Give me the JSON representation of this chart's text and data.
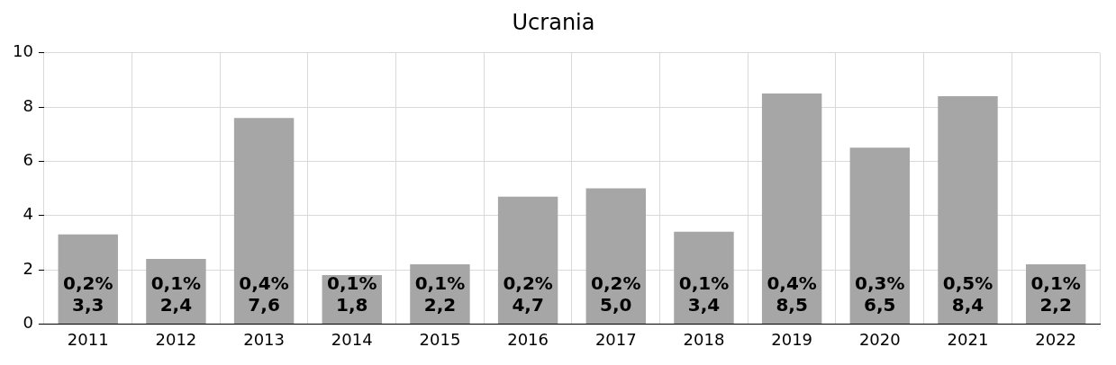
{
  "chart_data": {
    "type": "bar",
    "title": "Ucrania",
    "categories": [
      "2011",
      "2012",
      "2013",
      "2014",
      "2015",
      "2016",
      "2017",
      "2018",
      "2019",
      "2020",
      "2021",
      "2022"
    ],
    "values": [
      3.3,
      2.4,
      7.6,
      1.8,
      2.2,
      4.7,
      5.0,
      3.4,
      8.5,
      6.5,
      8.4,
      2.2
    ],
    "value_labels": [
      "0,2%\n3,3",
      "0,1%\n2,4",
      "0,4%\n7,6",
      "0,1%\n1,8",
      "0,1%\n2,2",
      "0,2%\n4,7",
      "0,2%\n5,0",
      "0,1%\n3,4",
      "0,4%\n8,5",
      "0,3%\n6,5",
      "0,5%\n8,4",
      "0,1%\n2,2"
    ],
    "color": "#a6a6a6",
    "ylim": [
      0,
      10
    ],
    "yticks": [
      0,
      2,
      4,
      6,
      8,
      10
    ],
    "grid": true
  }
}
